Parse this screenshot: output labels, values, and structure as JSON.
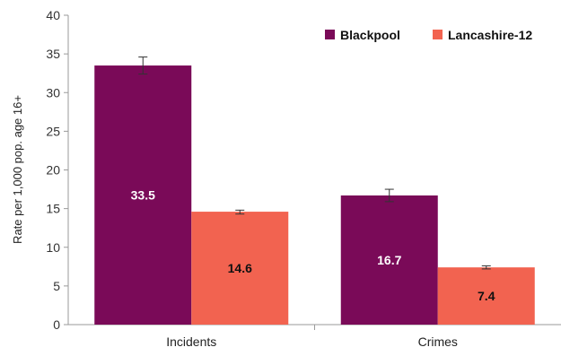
{
  "chart_data": {
    "type": "bar",
    "title": "",
    "xlabel": "",
    "ylabel": "Rate per 1,000 pop. age 16+",
    "categories": [
      "Incidents",
      "Crimes"
    ],
    "ylim": [
      0,
      40
    ],
    "yticks": [
      0,
      5,
      10,
      15,
      20,
      25,
      30,
      35,
      40
    ],
    "grid": false,
    "legend_position": "top-right",
    "series": [
      {
        "name": "Blackpool",
        "color": "#7a0a58",
        "label_color": "#ffffff",
        "values": [
          33.5,
          16.7
        ],
        "labels": [
          "33.5",
          "16.7"
        ],
        "error": [
          [
            32.4,
            34.6
          ],
          [
            15.9,
            17.5
          ]
        ]
      },
      {
        "name": "Lancashire-12",
        "color": "#f26350",
        "label_color": "#111111",
        "values": [
          14.6,
          7.4
        ],
        "labels": [
          "14.6",
          "7.4"
        ],
        "error": [
          [
            14.3,
            14.8
          ],
          [
            7.2,
            7.6
          ]
        ]
      }
    ]
  }
}
